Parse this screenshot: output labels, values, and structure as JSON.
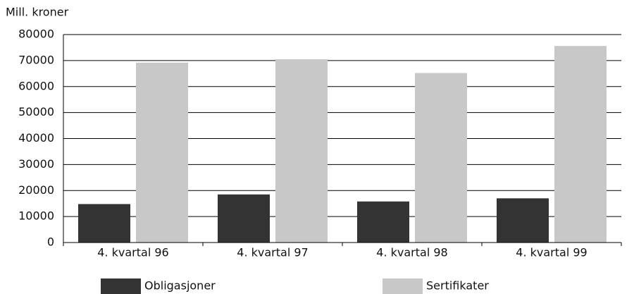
{
  "chart_data": {
    "type": "bar",
    "y_label": "Mill. kroner",
    "categories": [
      "4. kvartal 96",
      "4. kvartal 97",
      "4. kvartal 98",
      "4. kvartal 99"
    ],
    "series": [
      {
        "name": "Obligasjoner",
        "color": "#333333",
        "values": [
          14800,
          18500,
          15800,
          17000
        ]
      },
      {
        "name": "Sertifikater",
        "color": "#c8c8c8",
        "values": [
          69200,
          70500,
          65200,
          75600
        ]
      }
    ],
    "ylim": [
      0,
      80000
    ],
    "yticks": [
      0,
      10000,
      20000,
      30000,
      40000,
      50000,
      60000,
      70000,
      80000
    ],
    "grid": true,
    "legend": "bottom"
  }
}
